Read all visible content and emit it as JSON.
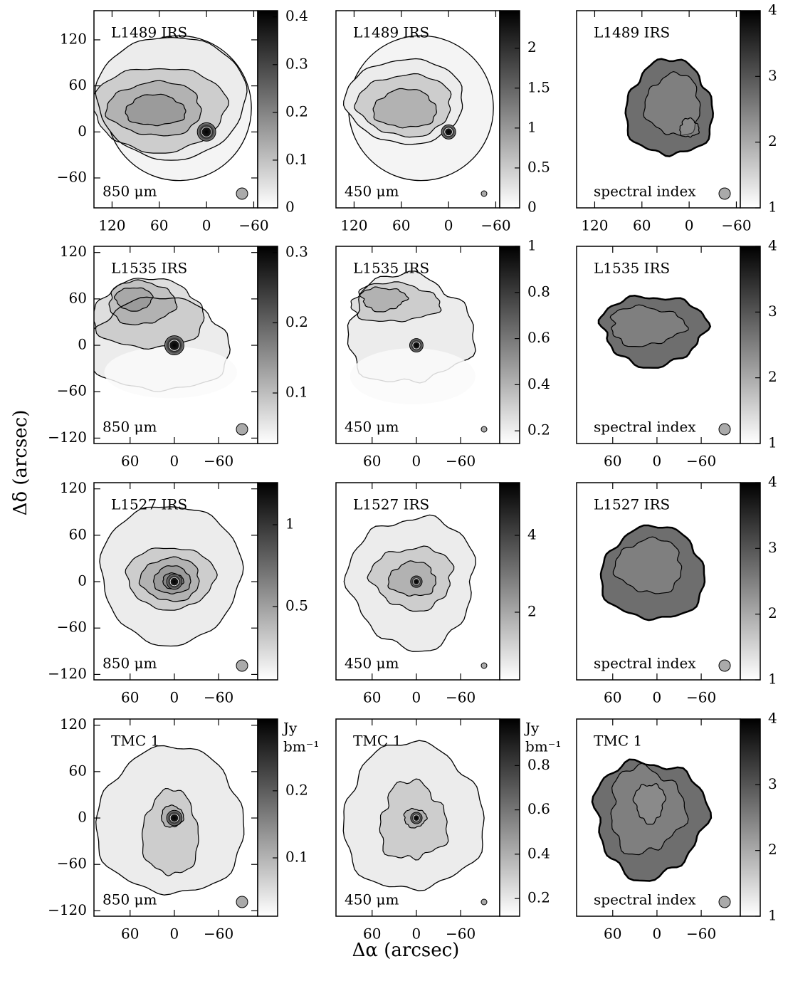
{
  "xlabel": "Δα (arcsec)",
  "ylabel": "Δδ (arcsec)",
  "chart_data": [
    {
      "type": "map",
      "title": "L1489 IRS",
      "band": "850 μm",
      "xlim": [
        143,
        -65
      ],
      "ylim": [
        -99,
        158
      ],
      "xticks": [
        120,
        60,
        0,
        {
          "value": -60,
          "label": "−60"
        }
      ],
      "yticks": [
        120,
        60,
        0,
        {
          "value": -60,
          "label": "−60"
        }
      ],
      "colorbar_lim": [
        0,
        0.413
      ],
      "colorbar_ticks": [
        0,
        0.1,
        0.2,
        0.3,
        0.4
      ]
    },
    {
      "type": "map",
      "title": "L1489 IRS",
      "band": "450 μm",
      "xlim": [
        143,
        -65
      ],
      "ylim": [
        -99,
        158
      ],
      "xticks": [
        120,
        60,
        0,
        {
          "value": -60,
          "label": "−60"
        }
      ],
      "colorbar_lim": [
        0,
        2.47
      ],
      "colorbar_ticks": [
        0,
        0.5,
        1,
        1.5,
        2
      ]
    },
    {
      "type": "map",
      "title": "L1489 IRS",
      "band": "spectral index",
      "xlim": [
        143,
        -65
      ],
      "ylim": [
        -99,
        158
      ],
      "xticks": [
        120,
        60,
        0,
        {
          "value": -60,
          "label": "−60"
        }
      ],
      "colorbar_lim": [
        1,
        4
      ],
      "colorbar_ticks": [
        1,
        2,
        3,
        4
      ]
    },
    {
      "type": "map",
      "title": "L1535 IRS",
      "band": "850 μm",
      "xlim": [
        109,
        -113
      ],
      "ylim": [
        -127,
        128
      ],
      "xticks": [
        60,
        0,
        {
          "value": -60,
          "label": "−60"
        }
      ],
      "yticks": [
        120,
        60,
        0,
        {
          "value": -60,
          "label": "−60"
        },
        {
          "value": -120,
          "label": "−120"
        }
      ],
      "colorbar_lim": [
        0.028,
        0.309
      ],
      "colorbar_ticks": [
        0.1,
        0.2,
        0.3
      ]
    },
    {
      "type": "map",
      "title": "L1535 IRS",
      "band": "450 μm",
      "xlim": [
        109,
        -113
      ],
      "ylim": [
        -127,
        128
      ],
      "xticks": [
        60,
        0,
        {
          "value": -60,
          "label": "−60"
        }
      ],
      "colorbar_lim": [
        0.145,
        1
      ],
      "colorbar_ticks": [
        0.2,
        0.4,
        0.6,
        0.8,
        1
      ]
    },
    {
      "type": "map",
      "title": "L1535 IRS",
      "band": "spectral index",
      "xlim": [
        109,
        -113
      ],
      "ylim": [
        -127,
        128
      ],
      "xticks": [
        60,
        0,
        {
          "value": -60,
          "label": "−60"
        }
      ],
      "colorbar_lim": [
        1,
        4
      ],
      "colorbar_ticks": [
        1,
        2,
        3,
        4
      ]
    },
    {
      "type": "map",
      "title": "L1527 IRS",
      "band": "850 μm",
      "xlim": [
        109,
        -113
      ],
      "ylim": [
        -127,
        128
      ],
      "xticks": [
        60,
        0,
        {
          "value": -60,
          "label": "−60"
        }
      ],
      "yticks": [
        120,
        60,
        0,
        {
          "value": -60,
          "label": "−60"
        },
        {
          "value": -120,
          "label": "−120"
        }
      ],
      "colorbar_lim": [
        0.052,
        1.257
      ],
      "colorbar_ticks": [
        0.5,
        1
      ]
    },
    {
      "type": "map",
      "title": "L1527 IRS",
      "band": "450 μm",
      "xlim": [
        109,
        -113
      ],
      "ylim": [
        -127,
        128
      ],
      "xticks": [
        60,
        0,
        {
          "value": -60,
          "label": "−60"
        }
      ],
      "colorbar_lim": [
        0.24,
        5.37
      ],
      "colorbar_ticks": [
        2,
        4
      ]
    },
    {
      "type": "map",
      "title": "L1527 IRS",
      "band": "spectral index",
      "xlim": [
        109,
        -113
      ],
      "ylim": [
        -127,
        128
      ],
      "xticks": [
        60,
        0,
        {
          "value": -60,
          "label": "−60"
        }
      ],
      "colorbar_lim": [
        1,
        4
      ],
      "colorbar_ticks": [
        1,
        2,
        3,
        4
      ]
    },
    {
      "type": "map",
      "title": "TMC 1",
      "band": "850 μm",
      "xlim": [
        109,
        -113
      ],
      "ylim": [
        -127,
        128
      ],
      "xticks": [
        60,
        0,
        {
          "value": -60,
          "label": "−60"
        }
      ],
      "yticks": [
        120,
        60,
        0,
        {
          "value": -60,
          "label": "−60"
        },
        {
          "value": -120,
          "label": "−120"
        }
      ],
      "colorbar_lim": [
        0.013,
        0.307
      ],
      "colorbar_ticks": [
        0.1,
        0.2
      ],
      "colorbar_label": [
        "Jy",
        "bm⁻¹"
      ]
    },
    {
      "type": "map",
      "title": "TMC 1",
      "band": "450 μm",
      "xlim": [
        109,
        -113
      ],
      "ylim": [
        -127,
        128
      ],
      "xticks": [
        60,
        0,
        {
          "value": -60,
          "label": "−60"
        }
      ],
      "colorbar_lim": [
        0.12,
        1.01
      ],
      "colorbar_ticks": [
        0.2,
        0.4,
        0.6,
        0.8
      ],
      "colorbar_label": [
        "Jy",
        "bm⁻¹"
      ]
    },
    {
      "type": "map",
      "title": "TMC 1",
      "band": "spectral index",
      "xlim": [
        109,
        -113
      ],
      "ylim": [
        -127,
        128
      ],
      "xticks": [
        60,
        0,
        {
          "value": -60,
          "label": "−60"
        }
      ],
      "colorbar_lim": [
        1,
        4
      ],
      "colorbar_ticks": [
        1,
        2,
        3,
        4
      ]
    }
  ]
}
